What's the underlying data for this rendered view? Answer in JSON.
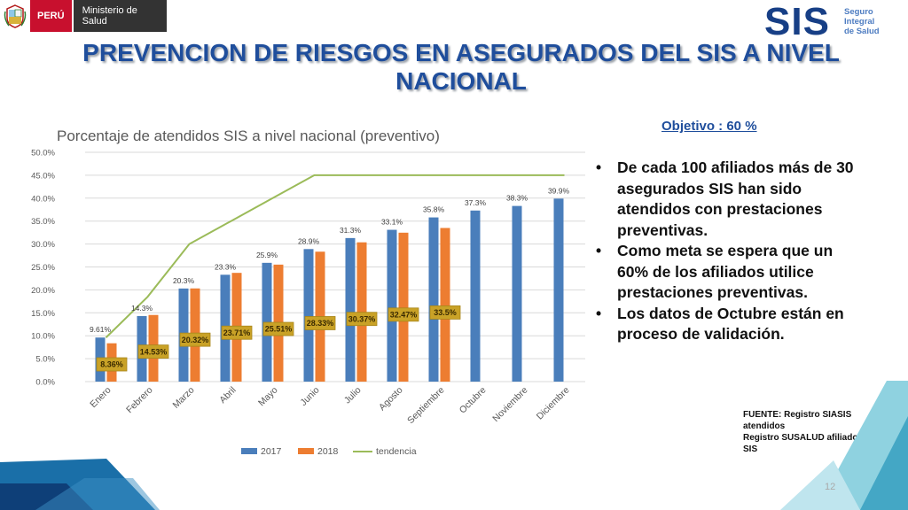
{
  "header": {
    "country": "PERÚ",
    "ministry": "Ministerio de Salud",
    "logo_word": "SIS",
    "logo_tagline": [
      "Seguro",
      "Integral",
      "de Salud"
    ]
  },
  "title": "PREVENCION DE RIESGOS EN ASEGURADOS DEL SIS A NIVEL NACIONAL",
  "objective": "Objetivo :  60 %",
  "bullets": [
    "De cada 100 afiliados  más de 30 asegurados  SIS han sido atendidos  con prestaciones preventivas.",
    "Como meta se espera que un 60% de los afiliados utilice prestaciones  preventivas.",
    "Los datos de  Octubre están en proceso de validación."
  ],
  "source": [
    "FUENTE: Registro SIASIS atendidos",
    "Registro SUSALUD afiliados SIS"
  ],
  "page_number": "12",
  "colors": {
    "title": "#1f4e9c",
    "series_2017": "#4a7ebb",
    "series_2018": "#ed7d31",
    "tendencia": "#9bbb59",
    "label_box": "#c9a227"
  },
  "chart_data": {
    "type": "bar",
    "title": "Porcentaje de atendidos SIS a nivel nacional (preventivo)",
    "categories": [
      "Enero",
      "Febrero",
      "Marzo",
      "Abril",
      "Mayo",
      "Junio",
      "Julio",
      "Agosto",
      "Septiembre",
      "Octubre",
      "Noviembre",
      "Diciembre"
    ],
    "ylim": [
      0,
      50
    ],
    "yticks": [
      0,
      5,
      10,
      15,
      20,
      25,
      30,
      35,
      40,
      45,
      50
    ],
    "ytick_labels": [
      "0.0%",
      "5.0%",
      "10.0%",
      "15.0%",
      "20.0%",
      "25.0%",
      "30.0%",
      "35.0%",
      "40.0%",
      "45.0%",
      "50.0%"
    ],
    "grid": true,
    "legend_position": "bottom",
    "series": [
      {
        "name": "2017",
        "kind": "bar",
        "values": [
          9.61,
          14.3,
          20.3,
          23.3,
          25.9,
          28.9,
          31.3,
          33.1,
          35.8,
          37.3,
          38.3,
          39.9
        ],
        "labels": [
          "9.61%",
          "14.3%",
          "20.3%",
          "23.3%",
          "25.9%",
          "28.9%",
          "31.3%",
          "33.1%",
          "35.8%",
          "37.3%",
          "38.3%",
          "39.9%"
        ]
      },
      {
        "name": "2018",
        "kind": "bar",
        "values": [
          8.36,
          14.53,
          20.32,
          23.71,
          25.51,
          28.33,
          30.37,
          32.47,
          33.5,
          null,
          null,
          null
        ],
        "labels": [
          "8.36%",
          "14.53%",
          "20.32%",
          "23.71%",
          "25.51%",
          "28.33%",
          "30.37%",
          "32.47%",
          "33.5%",
          null,
          null,
          null
        ]
      },
      {
        "name": "tendencia",
        "kind": "line",
        "values": [
          9.6,
          18.5,
          30,
          35,
          40,
          45,
          45,
          45,
          45,
          45,
          45,
          45
        ]
      }
    ]
  }
}
